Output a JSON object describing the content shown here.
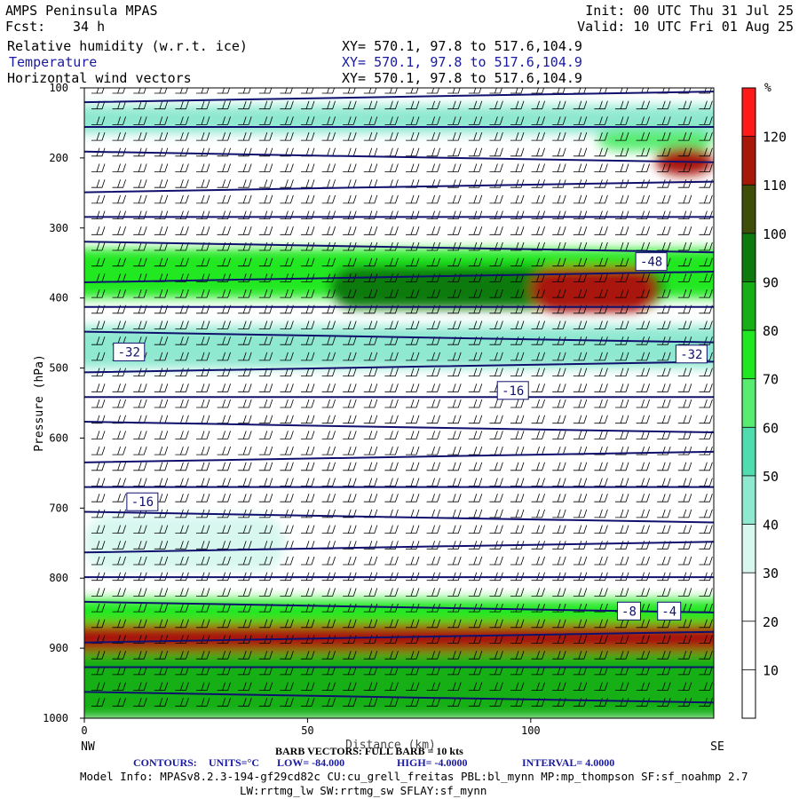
{
  "header": {
    "title": "AMPS Peninsula MPAS",
    "fcst_label": "Fcst:",
    "fcst_value": "34 h",
    "init": "Init: 00 UTC Thu 31 Jul 25",
    "valid": "Valid: 10 UTC Fri 01 Aug 25",
    "fields": [
      {
        "name": "Relative humidity (w.r.t. ice)",
        "xy": "XY= 570.1, 97.8 to 517.6,104.9",
        "color": "#000000"
      },
      {
        "name": "Temperature",
        "xy": "XY= 570.1, 97.8 to 517.6,104.9",
        "color": "#1a1aa0"
      },
      {
        "name": "Horizontal wind vectors",
        "xy": "XY= 570.1, 97.8 to 517.6,104.9",
        "color": "#000000"
      }
    ]
  },
  "chart_data": {
    "type": "cross-section",
    "ylabel": "Pressure (hPa)",
    "xlabel": "Distance (km)",
    "x_range": [
      0,
      141
    ],
    "y_range": [
      100,
      1000
    ],
    "y_scale": "linear, inverted",
    "x_ticks": [
      0,
      50,
      100
    ],
    "y_ticks": [
      100,
      200,
      300,
      400,
      500,
      600,
      700,
      800,
      900,
      1000
    ],
    "x_end_labels": {
      "left": "NW",
      "right": "SE"
    },
    "colorbar": {
      "unit": "%",
      "levels": [
        10,
        20,
        30,
        40,
        50,
        60,
        70,
        80,
        90,
        100,
        110,
        120
      ],
      "colors": [
        "#ffffff",
        "#ffffff",
        "#ffffff",
        "#d7f7ef",
        "#8fe8d0",
        "#4fdcae",
        "#58ec70",
        "#20e820",
        "#16b016",
        "#0c7a0c",
        "#3e4e08",
        "#a81808",
        "#ff1a1a"
      ]
    },
    "rh_bands": [
      {
        "p": [
          125,
          165
        ],
        "rh": 40
      },
      {
        "p": [
          160,
          190
        ],
        "x": [
          115,
          141
        ],
        "rh": 60
      },
      {
        "p": [
          185,
          225
        ],
        "x": [
          128,
          141
        ],
        "rh": 110
      },
      {
        "p": [
          330,
          400
        ],
        "rh": 75
      },
      {
        "p": [
          355,
          415
        ],
        "x": [
          55,
          130
        ],
        "rh": 95
      },
      {
        "p": [
          355,
          420
        ],
        "x": [
          100,
          128
        ],
        "rh": 115
      },
      {
        "p": [
          440,
          500
        ],
        "rh": 45
      },
      {
        "p": [
          710,
          790
        ],
        "x": [
          0,
          45
        ],
        "rh": 35
      },
      {
        "p": [
          830,
          870
        ],
        "rh": 75
      },
      {
        "p": [
          865,
          905
        ],
        "rh": 110
      },
      {
        "p": [
          905,
          1000
        ],
        "rh": 80
      }
    ],
    "temperature_contours": {
      "units": "°C",
      "low": -84.0,
      "high": -4.0,
      "interval": 4.0,
      "labels": [
        {
          "value": "-48",
          "x": 127,
          "p": 348
        },
        {
          "value": "-32",
          "x": 10,
          "p": 477
        },
        {
          "value": "-32",
          "x": 136,
          "p": 480
        },
        {
          "value": "-16",
          "x": 96,
          "p": 532
        },
        {
          "value": "-16",
          "x": 13,
          "p": 691
        },
        {
          "value": "-8",
          "x": 122,
          "p": 847
        },
        {
          "value": "-4",
          "x": 131,
          "p": 847
        }
      ]
    },
    "wind": {
      "description": "Horizontal wind vectors",
      "full_barb": "10 kts"
    }
  },
  "footer": {
    "barb_note": "BARB VECTORS: FULL BARB = 10 kts",
    "contours_label": "CONTOURS:",
    "contours_units": "UNITS=°C",
    "contours_low": "LOW= -84.000",
    "contours_high": "HIGH= -4.0000",
    "contours_interval": "INTERVAL= 4.0000",
    "model_info": "Model Info: MPASv8.2.3-194-gf29cd82c CU:cu_grell_freitas PBL:bl_mynn MP:mp_thompson SF:sf_noahmp 2.7",
    "model_info2": "LW:rrtmg_lw SW:rrtmg_sw SFLAY:sf_mynn"
  }
}
